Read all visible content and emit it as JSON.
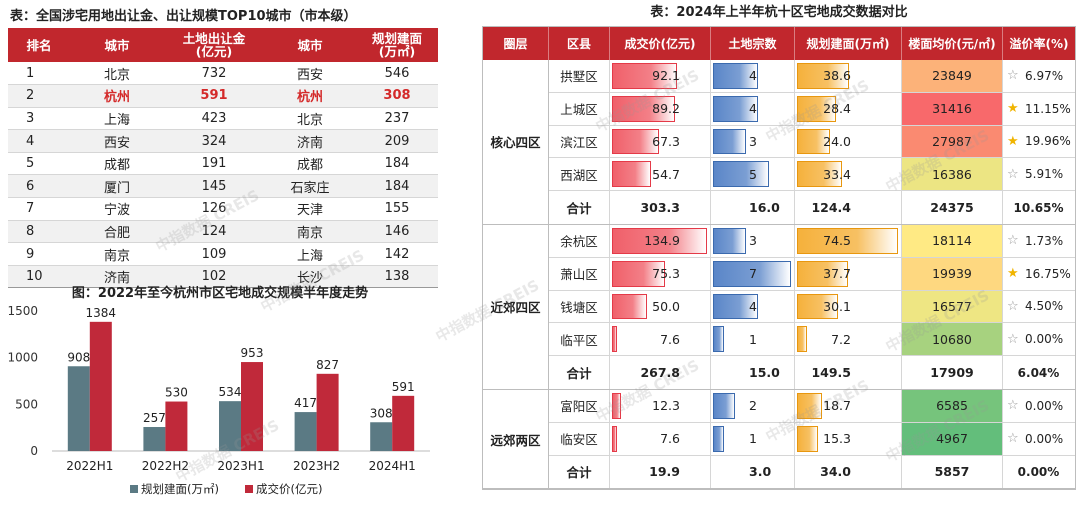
{
  "top10": {
    "title": "表：全国涉宅用地出让金、出让规模TOP10城市（市本级）",
    "headers": {
      "rank": "排名",
      "city_a": "城市",
      "revenue_l1": "土地出让金",
      "revenue_l2": "(亿元)",
      "city_b": "城市",
      "area_l1": "规划建面",
      "area_l2": "(万㎡)"
    },
    "rows": [
      {
        "rank": "1",
        "city_a": "北京",
        "revenue": "732",
        "city_b": "西安",
        "area": "546"
      },
      {
        "rank": "2",
        "city_a": "杭州",
        "revenue": "591",
        "city_b": "杭州",
        "area": "308"
      },
      {
        "rank": "3",
        "city_a": "上海",
        "revenue": "423",
        "city_b": "北京",
        "area": "237"
      },
      {
        "rank": "4",
        "city_a": "西安",
        "revenue": "324",
        "city_b": "济南",
        "area": "209"
      },
      {
        "rank": "5",
        "city_a": "成都",
        "revenue": "191",
        "city_b": "成都",
        "area": "184"
      },
      {
        "rank": "6",
        "city_a": "厦门",
        "revenue": "145",
        "city_b": "石家庄",
        "area": "184"
      },
      {
        "rank": "7",
        "city_a": "宁波",
        "revenue": "126",
        "city_b": "天津",
        "area": "155"
      },
      {
        "rank": "8",
        "city_a": "合肥",
        "revenue": "124",
        "city_b": "南京",
        "area": "146"
      },
      {
        "rank": "9",
        "city_a": "南京",
        "revenue": "109",
        "city_b": "上海",
        "area": "142"
      },
      {
        "rank": "10",
        "city_a": "济南",
        "revenue": "102",
        "city_b": "长沙",
        "area": "138"
      }
    ]
  },
  "chart_data": {
    "type": "bar",
    "title": "图：2022年至今杭州市区宅地成交规模半年度走势",
    "categories": [
      "2022H1",
      "2022H2",
      "2023H1",
      "2023H2",
      "2024H1"
    ],
    "series": [
      {
        "name": "规划建面(万㎡)",
        "values": [
          908,
          257,
          534,
          417,
          308
        ],
        "color": "#5b7a84"
      },
      {
        "name": "成交价(亿元)",
        "values": [
          1384,
          530,
          953,
          827,
          591
        ],
        "color": "#c0293a"
      }
    ],
    "ylim": [
      0,
      1500
    ],
    "yticks": [
      "0",
      "500",
      "1000",
      "1500"
    ],
    "legend": "bottom",
    "grid": false
  },
  "district": {
    "title": "表：2024年上半年杭十区宅地成交数据对比",
    "headers": {
      "group": "圈层",
      "district": "区县",
      "price": "成交价(亿元)",
      "count": "土地宗数",
      "area": "规划建面(万㎡)",
      "unit_price": "楼面均价(元/㎡)",
      "premium": "溢价率(%)"
    },
    "groups": [
      {
        "name": "核心四区",
        "rows": [
          {
            "district": "拱墅区",
            "price": "92.1",
            "count": "4",
            "area": "38.6",
            "unit_price": "23849",
            "premium": "6.97%",
            "star": "off"
          },
          {
            "district": "上城区",
            "price": "89.2",
            "count": "4",
            "area": "28.4",
            "unit_price": "31416",
            "premium": "11.15%",
            "star": "on"
          },
          {
            "district": "滨江区",
            "price": "67.3",
            "count": "3",
            "area": "24.0",
            "unit_price": "27987",
            "premium": "19.96%",
            "star": "on"
          },
          {
            "district": "西湖区",
            "price": "54.7",
            "count": "5",
            "area": "33.4",
            "unit_price": "16386",
            "premium": "5.91%",
            "star": "off"
          }
        ],
        "sum": {
          "label": "合计",
          "price": "303.3",
          "count": "16.0",
          "area": "124.4",
          "unit_price": "24375",
          "premium": "10.65%"
        }
      },
      {
        "name": "近郊四区",
        "rows": [
          {
            "district": "余杭区",
            "price": "134.9",
            "count": "3",
            "area": "74.5",
            "unit_price": "18114",
            "premium": "1.73%",
            "star": "off"
          },
          {
            "district": "萧山区",
            "price": "75.3",
            "count": "7",
            "area": "37.7",
            "unit_price": "19939",
            "premium": "16.75%",
            "star": "on"
          },
          {
            "district": "钱塘区",
            "price": "50.0",
            "count": "4",
            "area": "30.1",
            "unit_price": "16577",
            "premium": "4.50%",
            "star": "off"
          },
          {
            "district": "临平区",
            "price": "7.6",
            "count": "1",
            "area": "7.2",
            "unit_price": "10680",
            "premium": "0.00%",
            "star": "off"
          }
        ],
        "sum": {
          "label": "合计",
          "price": "267.8",
          "count": "15.0",
          "area": "149.5",
          "unit_price": "17909",
          "premium": "6.04%"
        }
      },
      {
        "name": "远郊两区",
        "rows": [
          {
            "district": "富阳区",
            "price": "12.3",
            "count": "2",
            "area": "18.7",
            "unit_price": "6585",
            "premium": "0.00%",
            "star": "off"
          },
          {
            "district": "临安区",
            "price": "7.6",
            "count": "1",
            "area": "15.3",
            "unit_price": "4967",
            "premium": "0.00%",
            "star": "off"
          }
        ],
        "sum": {
          "label": "合计",
          "price": "19.9",
          "count": "3.0",
          "area": "34.0",
          "unit_price": "5857",
          "premium": "0.00%"
        }
      }
    ]
  },
  "watermark": "中指数据 CREIS",
  "colors": {
    "header_red": "#c1272d",
    "bar_red": "#f0606a",
    "bar_blue": "#5a86c8",
    "bar_orange": "#f5b13c",
    "highlight_text": "#d42a2a",
    "star_on": "#f0b400"
  }
}
